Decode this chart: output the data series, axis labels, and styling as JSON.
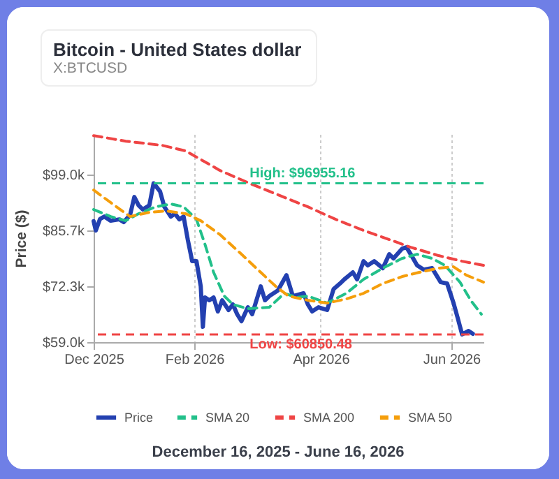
{
  "chart_data": {
    "type": "line",
    "title": "Bitcoin - United States dollar",
    "subtitle": "X:BTCUSD",
    "ylabel": "Price ($)",
    "annotations": [
      "December 16, 2025 - June 16, 2026"
    ],
    "xlim": [
      "2025-12-16",
      "2026-06-16"
    ],
    "xticks": [
      {
        "value": "2025-12-16",
        "label": "Dec 2025"
      },
      {
        "value": "2026-02-01",
        "label": "Feb 2026"
      },
      {
        "value": "2026-04-01",
        "label": "Apr 2026"
      },
      {
        "value": "2026-06-01",
        "label": "Jun 2026"
      }
    ],
    "ylim": [
      59000,
      108700
    ],
    "yticks": [
      {
        "value": 59000,
        "label": "$59.0k"
      },
      {
        "value": 72333,
        "label": "$72.3k"
      },
      {
        "value": 85667,
        "label": "$85.7k"
      },
      {
        "value": 99000,
        "label": "$99.0k"
      }
    ],
    "grid": "x",
    "legend": "bottom",
    "marker": "none",
    "ref_lines": [
      {
        "axis": "y",
        "value": 96955.16,
        "label": "High: $96955.16",
        "color": "#22c08a",
        "line_style": "dashed"
      },
      {
        "axis": "y",
        "value": 60850.48,
        "label": "Low: $60850.48",
        "color": "#ef4444",
        "line_style": "dashed"
      }
    ],
    "series": [
      {
        "name": "Price",
        "color": "#2340b0",
        "line_style": "solid",
        "x": [
          "2025-12-16",
          "2025-12-17",
          "2025-12-19",
          "2025-12-21",
          "2025-12-24",
          "2025-12-28",
          "2025-12-30",
          "2026-01-02",
          "2026-01-04",
          "2026-01-06",
          "2026-01-08",
          "2026-01-11",
          "2026-01-13",
          "2026-01-16",
          "2026-01-18",
          "2026-01-21",
          "2026-01-23",
          "2026-01-25",
          "2026-01-27",
          "2026-01-29",
          "2026-01-31",
          "2026-02-02",
          "2026-02-04",
          "2026-02-05",
          "2026-02-06",
          "2026-02-08",
          "2026-02-10",
          "2026-02-12",
          "2026-02-14",
          "2026-02-17",
          "2026-02-19",
          "2026-02-21",
          "2026-02-23",
          "2026-02-26",
          "2026-02-28",
          "2026-03-02",
          "2026-03-04",
          "2026-03-06",
          "2026-03-08",
          "2026-03-12",
          "2026-03-16",
          "2026-03-19",
          "2026-03-24",
          "2026-03-26",
          "2026-03-28",
          "2026-03-31",
          "2026-04-04",
          "2026-04-07",
          "2026-04-10",
          "2026-04-12",
          "2026-04-16",
          "2026-04-18",
          "2026-04-21",
          "2026-04-23",
          "2026-04-26",
          "2026-04-30",
          "2026-05-03",
          "2026-05-05",
          "2026-05-09",
          "2026-05-11",
          "2026-05-13",
          "2026-05-16",
          "2026-05-19",
          "2026-05-23",
          "2026-05-25",
          "2026-05-27",
          "2026-05-30",
          "2026-06-02",
          "2026-06-04",
          "2026-06-06",
          "2026-06-09",
          "2026-06-11"
        ],
        "values": [
          87900,
          85670,
          88430,
          89000,
          88000,
          88330,
          87670,
          89330,
          93670,
          91670,
          90670,
          91670,
          96955,
          95000,
          91330,
          89000,
          89670,
          88330,
          89000,
          83330,
          78330,
          78330,
          72330,
          62670,
          69670,
          69000,
          69670,
          66330,
          69000,
          66670,
          68000,
          65670,
          64000,
          67330,
          65670,
          69000,
          72330,
          69000,
          70000,
          71330,
          75000,
          70000,
          70670,
          68000,
          66330,
          67330,
          66670,
          71670,
          73000,
          74000,
          75670,
          74000,
          78330,
          77330,
          78330,
          76670,
          80000,
          79000,
          81330,
          81670,
          80000,
          77330,
          76330,
          76670,
          75000,
          73330,
          73000,
          68330,
          64670,
          60850,
          61670,
          61000
        ]
      },
      {
        "name": "SMA 20",
        "color": "#22c08a",
        "line_style": "dashed",
        "x": [
          "2025-12-16",
          "2025-12-24",
          "2025-12-31",
          "2026-01-06",
          "2026-01-14",
          "2026-01-21",
          "2026-01-27",
          "2026-02-02",
          "2026-02-06",
          "2026-02-10",
          "2026-02-15",
          "2026-02-19",
          "2026-02-26",
          "2026-03-08",
          "2026-03-15",
          "2026-03-21",
          "2026-03-26",
          "2026-04-04",
          "2026-04-13",
          "2026-04-21",
          "2026-04-30",
          "2026-05-09",
          "2026-05-16",
          "2026-05-23",
          "2026-05-29",
          "2026-06-05",
          "2026-06-10",
          "2026-06-15"
        ],
        "values": [
          90670,
          89000,
          88000,
          89670,
          91330,
          92000,
          91330,
          88330,
          82330,
          75670,
          70000,
          68000,
          67000,
          67330,
          70670,
          69670,
          70000,
          68330,
          70670,
          74000,
          76670,
          79000,
          80000,
          79000,
          77330,
          73330,
          69000,
          65670
        ]
      },
      {
        "name": "SMA 200",
        "color": "#ef4444",
        "line_style": "dashed",
        "x": [
          "2025-12-16",
          "2025-12-31",
          "2026-01-17",
          "2026-01-28",
          "2026-02-13",
          "2026-02-28",
          "2026-03-13",
          "2026-03-26",
          "2026-04-08",
          "2026-04-21",
          "2026-05-04",
          "2026-05-13",
          "2026-05-26",
          "2026-06-06",
          "2026-06-16"
        ],
        "values": [
          108330,
          107000,
          106000,
          104670,
          100000,
          96670,
          94000,
          91330,
          88330,
          85670,
          83330,
          81670,
          79670,
          78330,
          77330
        ]
      },
      {
        "name": "SMA 50",
        "color": "#f59e0b",
        "line_style": "dashed",
        "x": [
          "2025-12-16",
          "2025-12-24",
          "2026-01-02",
          "2026-01-11",
          "2026-01-19",
          "2026-01-28",
          "2026-02-04",
          "2026-02-13",
          "2026-02-23",
          "2026-03-04",
          "2026-03-11",
          "2026-03-17",
          "2026-03-26",
          "2026-04-04",
          "2026-04-13",
          "2026-04-21",
          "2026-04-30",
          "2026-05-09",
          "2026-05-17",
          "2026-05-26",
          "2026-06-02",
          "2026-06-08",
          "2026-06-16"
        ],
        "values": [
          95330,
          92330,
          89000,
          90000,
          90330,
          89670,
          88000,
          84670,
          80000,
          75670,
          72330,
          70000,
          69000,
          68330,
          69330,
          70670,
          73000,
          74670,
          75670,
          76670,
          77000,
          75000,
          73330
        ]
      }
    ]
  }
}
